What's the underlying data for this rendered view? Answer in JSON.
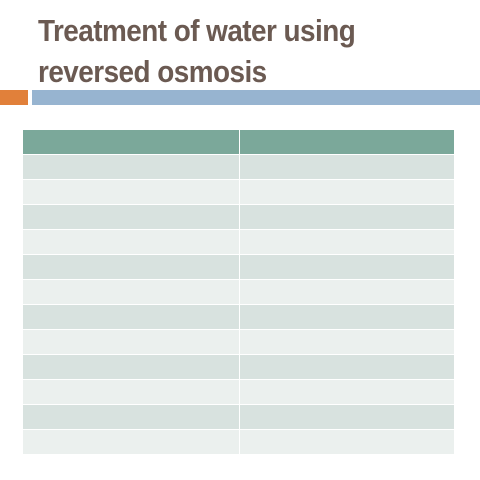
{
  "slide": {
    "title_lines": [
      "Treatment of water using",
      "reversed osmosis"
    ]
  },
  "table": {
    "headers": [
      "",
      ""
    ],
    "rows": [
      [
        "",
        ""
      ],
      [
        "",
        ""
      ],
      [
        "",
        ""
      ],
      [
        "",
        ""
      ],
      [
        "",
        ""
      ],
      [
        "",
        ""
      ],
      [
        "",
        ""
      ],
      [
        "",
        ""
      ],
      [
        "",
        ""
      ],
      [
        "",
        ""
      ],
      [
        "",
        ""
      ],
      [
        "",
        ""
      ]
    ]
  },
  "colors": {
    "title": "#6b5a52",
    "accent_orange": "#e1803a",
    "accent_blue": "#97b4d0",
    "header_fill": "#7ba89a",
    "row_band_dark": "#d8e2df",
    "row_band_light": "#ebf0ee"
  }
}
